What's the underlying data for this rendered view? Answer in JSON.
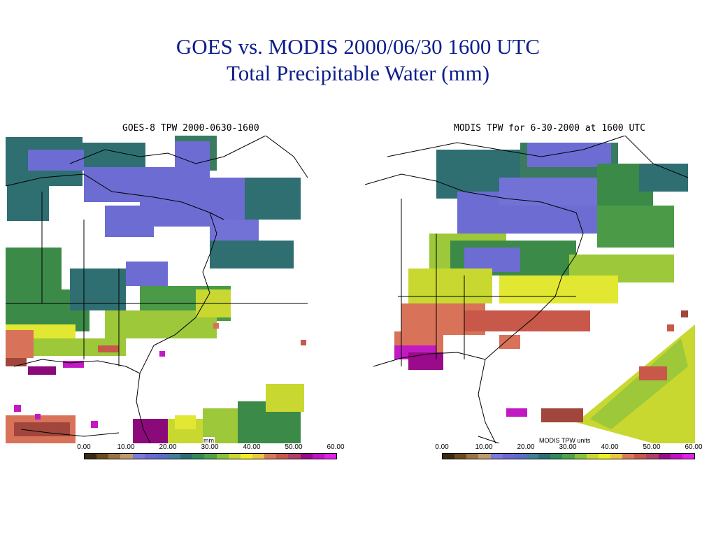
{
  "slide": {
    "title_line1": "GOES vs. MODIS 2000/06/30 1600 UTC",
    "title_line2": "Total Precipitable Water (mm)"
  },
  "panels": [
    {
      "title": "GOES-8 TPW 2000-0630-1600",
      "units_label": "mm",
      "colorbar_ticks": [
        "0.00",
        "10.00",
        "20.00",
        "30.00",
        "40.00",
        "50.00",
        "60.00"
      ]
    },
    {
      "title": "MODIS TPW for 6-30-2000 at 1600 UTC",
      "units_label": "MODIS TPW units",
      "colorbar_ticks": [
        "0.00",
        "10.00",
        "20.00",
        "30.00",
        "40.00",
        "50.00",
        "60.00"
      ]
    }
  ],
  "colorbar": {
    "range_mm": [
      0,
      60
    ],
    "colors": [
      "#3a2a10",
      "#6b4a1e",
      "#9b7240",
      "#c09a6a",
      "#7a7ad8",
      "#6a6ad0",
      "#5a6cc8",
      "#3f7f9a",
      "#2a6e72",
      "#2f8a58",
      "#4ea24a",
      "#86c23a",
      "#c8d830",
      "#eeee20",
      "#e8c840",
      "#d87a5a",
      "#c8584a",
      "#b04068",
      "#9a0a8a",
      "#c010c8",
      "#e020e8"
    ]
  },
  "palette": {
    "dry_purple": "#6c6cd2",
    "teal": "#2f6f72",
    "green": "#3c8a48",
    "light_green": "#9cc83a",
    "yellow": "#e2e832",
    "salmon": "#d8735a",
    "brown_red": "#a0463c",
    "magenta": "#c21ac2",
    "title_blue": "#0d1e8c"
  }
}
